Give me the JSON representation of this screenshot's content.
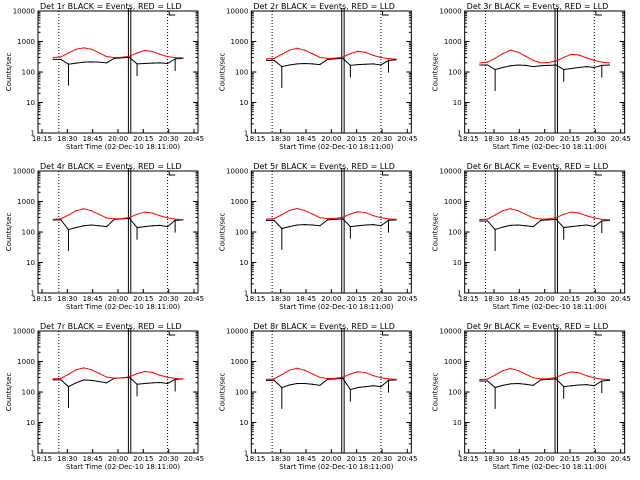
{
  "figure": {
    "background": "#ffffff",
    "events_color": "#000000",
    "lld_color": "#ff0000",
    "axis_color": "#000000"
  },
  "chart_data": [
    {
      "type": "line",
      "title": "Det 1r BLACK = Events, RED = LLD",
      "xlabel": "Start Time (02-Dec-10 18:11:00)",
      "ylabel": "Counts/sec",
      "yscale": "log",
      "ylim": [
        1,
        10000
      ],
      "ytick_labels": [
        "1",
        "10",
        "100",
        "1000",
        "10000"
      ],
      "xlim": [
        -4,
        38
      ],
      "xtick_labels": [
        "18:15",
        "18:30",
        "18:45",
        "20:00",
        "20:15",
        "20:30",
        "20:45"
      ],
      "x": [
        0,
        2,
        4,
        6,
        8,
        10,
        12,
        14,
        16,
        18,
        20,
        22,
        24,
        26,
        28,
        30,
        32,
        34
      ],
      "series": [
        {
          "name": "Events",
          "values": [
            260,
            260,
            180,
            195,
            210,
            215,
            210,
            200,
            280,
            290,
            300,
            185,
            190,
            195,
            200,
            190,
            270,
            280
          ]
        },
        {
          "name": "LLD",
          "values": [
            300,
            310,
            420,
            560,
            620,
            560,
            430,
            320,
            300,
            305,
            330,
            420,
            510,
            470,
            380,
            320,
            300,
            290
          ]
        }
      ]
    },
    {
      "type": "line",
      "title": "Det 2r BLACK = Events, RED = LLD",
      "xlabel": "Start Time (02-Dec-10 18:11:00)",
      "ylabel": "Counts/sec",
      "yscale": "log",
      "ylim": [
        1,
        10000
      ],
      "ytick_labels": [
        "1",
        "10",
        "100",
        "1000",
        "10000"
      ],
      "xlim": [
        -4,
        38
      ],
      "xtick_labels": [
        "18:15",
        "18:30",
        "18:45",
        "20:00",
        "20:15",
        "20:30",
        "20:45"
      ],
      "x": [
        0,
        2,
        4,
        6,
        8,
        10,
        12,
        14,
        16,
        18,
        20,
        22,
        24,
        26,
        28,
        30,
        32,
        34
      ],
      "series": [
        {
          "name": "Events",
          "values": [
            240,
            240,
            150,
            170,
            185,
            190,
            185,
            175,
            260,
            270,
            280,
            165,
            175,
            180,
            185,
            170,
            240,
            250
          ]
        },
        {
          "name": "LLD",
          "values": [
            270,
            280,
            380,
            520,
            600,
            520,
            400,
            300,
            280,
            285,
            310,
            400,
            480,
            440,
            350,
            300,
            275,
            265
          ]
        }
      ]
    },
    {
      "type": "line",
      "title": "Det 3r BLACK = Events, RED = LLD",
      "xlabel": "Start Time (02-Dec-10 18:11:00)",
      "ylabel": "Counts/sec",
      "yscale": "log",
      "ylim": [
        1,
        10000
      ],
      "ytick_labels": [
        "1",
        "10",
        "100",
        "1000",
        "10000"
      ],
      "xlim": [
        -4,
        38
      ],
      "xtick_labels": [
        "18:15",
        "18:30",
        "18:45",
        "20:00",
        "20:15",
        "20:30",
        "20:45"
      ],
      "x": [
        0,
        2,
        4,
        6,
        8,
        10,
        12,
        14,
        16,
        18,
        20,
        22,
        24,
        26,
        28,
        30,
        32,
        34
      ],
      "series": [
        {
          "name": "Events",
          "values": [
            170,
            170,
            120,
            140,
            160,
            170,
            165,
            150,
            160,
            165,
            170,
            120,
            130,
            140,
            150,
            140,
            165,
            170
          ]
        },
        {
          "name": "LLD",
          "values": [
            200,
            210,
            280,
            400,
            520,
            450,
            330,
            240,
            200,
            205,
            230,
            300,
            380,
            360,
            290,
            240,
            210,
            200
          ]
        }
      ]
    },
    {
      "type": "line",
      "title": "Det 4r BLACK = Events, RED = LLD",
      "xlabel": "Start Time (02-Dec-10 18:11:00)",
      "ylabel": "Counts/sec",
      "yscale": "log",
      "ylim": [
        1,
        10000
      ],
      "ytick_labels": [
        "1",
        "10",
        "100",
        "1000",
        "10000"
      ],
      "xlim": [
        -4,
        38
      ],
      "xtick_labels": [
        "18:15",
        "18:30",
        "18:45",
        "20:00",
        "20:15",
        "20:30",
        "20:45"
      ],
      "x": [
        0,
        2,
        4,
        6,
        8,
        10,
        12,
        14,
        16,
        18,
        20,
        22,
        24,
        26,
        28,
        30,
        32,
        34
      ],
      "series": [
        {
          "name": "Events",
          "values": [
            250,
            250,
            120,
            140,
            160,
            170,
            160,
            150,
            260,
            270,
            280,
            140,
            150,
            160,
            165,
            150,
            240,
            250
          ]
        },
        {
          "name": "LLD",
          "values": [
            260,
            270,
            360,
            500,
            580,
            500,
            380,
            290,
            270,
            275,
            300,
            380,
            450,
            420,
            340,
            290,
            265,
            255
          ]
        }
      ]
    },
    {
      "type": "line",
      "title": "Det 5r BLACK = Events, RED = LLD",
      "xlabel": "Start Time (02-Dec-10 18:11:00)",
      "ylabel": "Counts/sec",
      "yscale": "log",
      "ylim": [
        1,
        10000
      ],
      "ytick_labels": [
        "1",
        "10",
        "100",
        "1000",
        "10000"
      ],
      "xlim": [
        -4,
        38
      ],
      "xtick_labels": [
        "18:15",
        "18:30",
        "18:45",
        "20:00",
        "20:15",
        "20:30",
        "20:45"
      ],
      "x": [
        0,
        2,
        4,
        6,
        8,
        10,
        12,
        14,
        16,
        18,
        20,
        22,
        24,
        26,
        28,
        30,
        32,
        34
      ],
      "series": [
        {
          "name": "Events",
          "values": [
            240,
            240,
            130,
            150,
            170,
            175,
            170,
            160,
            250,
            260,
            270,
            150,
            160,
            170,
            175,
            160,
            240,
            250
          ]
        },
        {
          "name": "LLD",
          "values": [
            265,
            275,
            370,
            510,
            590,
            510,
            390,
            295,
            275,
            280,
            305,
            390,
            460,
            430,
            345,
            295,
            270,
            260
          ]
        }
      ]
    },
    {
      "type": "line",
      "title": "Det 6r BLACK = Events, RED = LLD",
      "xlabel": "Start Time (02-Dec-10 18:11:00)",
      "ylabel": "Counts/sec",
      "yscale": "log",
      "ylim": [
        1,
        10000
      ],
      "ytick_labels": [
        "1",
        "10",
        "100",
        "1000",
        "10000"
      ],
      "xlim": [
        -4,
        38
      ],
      "xtick_labels": [
        "18:15",
        "18:30",
        "18:45",
        "20:00",
        "20:15",
        "20:30",
        "20:45"
      ],
      "x": [
        0,
        2,
        4,
        6,
        8,
        10,
        12,
        14,
        16,
        18,
        20,
        22,
        24,
        26,
        28,
        30,
        32,
        34
      ],
      "series": [
        {
          "name": "Events",
          "values": [
            230,
            230,
            120,
            145,
            165,
            170,
            160,
            150,
            240,
            250,
            260,
            140,
            150,
            160,
            170,
            150,
            230,
            240
          ]
        },
        {
          "name": "LLD",
          "values": [
            255,
            265,
            360,
            500,
            580,
            500,
            380,
            290,
            265,
            270,
            295,
            380,
            450,
            420,
            340,
            290,
            260,
            250
          ]
        }
      ]
    },
    {
      "type": "line",
      "title": "Det 7r BLACK = Events, RED = LLD",
      "xlabel": "Start Time (02-Dec-10 18:11:00)",
      "ylabel": "Counts/sec",
      "yscale": "log",
      "ylim": [
        1,
        10000
      ],
      "ytick_labels": [
        "1",
        "10",
        "100",
        "1000",
        "10000"
      ],
      "xlim": [
        -4,
        38
      ],
      "xtick_labels": [
        "18:15",
        "18:30",
        "18:45",
        "20:00",
        "20:15",
        "20:30",
        "20:45"
      ],
      "x": [
        0,
        2,
        4,
        6,
        8,
        10,
        12,
        14,
        16,
        18,
        20,
        22,
        24,
        26,
        28,
        30,
        32,
        34
      ],
      "series": [
        {
          "name": "Events",
          "values": [
            250,
            250,
            150,
            200,
            250,
            240,
            220,
            200,
            280,
            290,
            300,
            180,
            190,
            200,
            205,
            190,
            260,
            270
          ]
        },
        {
          "name": "LLD",
          "values": [
            270,
            280,
            380,
            540,
            620,
            540,
            410,
            310,
            285,
            290,
            315,
            400,
            470,
            440,
            355,
            305,
            280,
            270
          ]
        }
      ]
    },
    {
      "type": "line",
      "title": "Det 8r BLACK = Events, RED = LLD",
      "xlabel": "Start Time (02-Dec-10 18:11:00)",
      "ylabel": "Counts/sec",
      "yscale": "log",
      "ylim": [
        1,
        10000
      ],
      "ytick_labels": [
        "1",
        "10",
        "100",
        "1000",
        "10000"
      ],
      "xlim": [
        -4,
        38
      ],
      "xtick_labels": [
        "18:15",
        "18:30",
        "18:45",
        "20:00",
        "20:15",
        "20:30",
        "20:45"
      ],
      "x": [
        0,
        2,
        4,
        6,
        8,
        10,
        12,
        14,
        16,
        18,
        20,
        22,
        24,
        26,
        28,
        30,
        32,
        34
      ],
      "series": [
        {
          "name": "Events",
          "values": [
            240,
            240,
            140,
            170,
            190,
            190,
            180,
            165,
            260,
            270,
            280,
            120,
            140,
            150,
            160,
            150,
            240,
            250
          ]
        },
        {
          "name": "LLD",
          "values": [
            260,
            270,
            370,
            520,
            600,
            520,
            395,
            300,
            275,
            280,
            305,
            390,
            460,
            430,
            345,
            295,
            270,
            260
          ]
        }
      ]
    },
    {
      "type": "line",
      "title": "Det 9r BLACK = Events, RED = LLD",
      "xlabel": "Start Time (02-Dec-10 18:11:00)",
      "ylabel": "Counts/sec",
      "yscale": "log",
      "ylim": [
        1,
        10000
      ],
      "ytick_labels": [
        "1",
        "10",
        "100",
        "1000",
        "10000"
      ],
      "xlim": [
        -4,
        38
      ],
      "xtick_labels": [
        "18:15",
        "18:30",
        "18:45",
        "20:00",
        "20:15",
        "20:30",
        "20:45"
      ],
      "x": [
        0,
        2,
        4,
        6,
        8,
        10,
        12,
        14,
        16,
        18,
        20,
        22,
        24,
        26,
        28,
        30,
        32,
        34
      ],
      "series": [
        {
          "name": "Events",
          "values": [
            230,
            230,
            140,
            165,
            185,
            190,
            180,
            165,
            250,
            260,
            270,
            150,
            160,
            170,
            175,
            160,
            230,
            240
          ]
        },
        {
          "name": "LLD",
          "values": [
            255,
            265,
            360,
            500,
            590,
            510,
            385,
            295,
            270,
            275,
            300,
            385,
            455,
            425,
            340,
            290,
            265,
            255
          ]
        }
      ]
    }
  ]
}
